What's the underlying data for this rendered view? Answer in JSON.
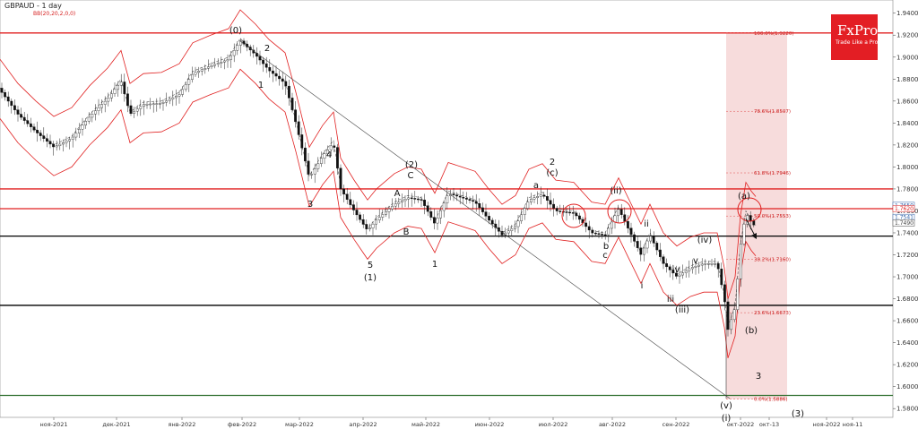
{
  "header": {
    "symbol_title": "GBPAUD - 1 day",
    "indicator_label": "BB(20,20,2,0,0)"
  },
  "logo": {
    "name": "FxPro",
    "tagline": "Trade Like a Pro",
    "color": "#e31e24"
  },
  "colors": {
    "bull": "#2e9e44",
    "bear": "#111111",
    "bollinger": "#e02020",
    "resistance": "#e02020",
    "support": "#000000",
    "low_line": "#2f6f2f",
    "fib_zone": "#f7dcdc",
    "accent_price": "#2d5fa8"
  },
  "chart_data": {
    "type": "candlestick",
    "title": "GBPAUD - 1 day",
    "y_axis": {
      "ylim": [
        1.572,
        1.952
      ],
      "ticks": [
        "1.9400",
        "1.9200",
        "1.9000",
        "1.8800",
        "1.8600",
        "1.8400",
        "1.8200",
        "1.8000",
        "1.7800",
        "1.7600",
        "1.7400",
        "1.7200",
        "1.7000",
        "1.6800",
        "1.6600",
        "1.6400",
        "1.6200",
        "1.6000",
        "1.5800"
      ]
    },
    "x_axis": {
      "ticks": [
        "ноя-2021",
        "дек-2021",
        "янв-2022",
        "фев-2022",
        "мар-2022",
        "апр-2022",
        "май-2022",
        "июн-2022",
        "июл-2022",
        "авг-2022",
        "сен-2022",
        "окт-2022",
        "окт-13",
        "ноя-2022",
        "ноя-11"
      ]
    },
    "current_price_labels": [
      "1.7650",
      "1.7620",
      "1.7541",
      "1.7490"
    ],
    "horizontal_levels": [
      {
        "value": 1.922,
        "color": "#e02020"
      },
      {
        "value": 1.78,
        "color": "#e02020"
      },
      {
        "value": 1.762,
        "color": "#e02020"
      },
      {
        "value": 1.737,
        "color": "#000000"
      },
      {
        "value": 1.674,
        "color": "#000000"
      },
      {
        "value": 1.592,
        "color": "#2f6f2f"
      }
    ],
    "fibonacci": [
      {
        "label": "100.0%(1.9220)",
        "value": 1.922
      },
      {
        "label": "78.6%(1.8507)",
        "value": 1.8507
      },
      {
        "label": "61.8%(1.7946)",
        "value": 1.7946
      },
      {
        "label": "50.0%(1.7553)",
        "value": 1.7553
      },
      {
        "label": "38.2%(1.7160)",
        "value": 1.716
      },
      {
        "label": "23.6%(1.6673)",
        "value": 1.6673
      },
      {
        "label": "0.0%(1.5886)",
        "value": 1.5886
      }
    ],
    "wave_labels": [
      "(0)",
      "2",
      "1",
      "4",
      "3",
      "(2)",
      "C",
      "A",
      "B",
      "5",
      "(1)",
      "1",
      "2",
      "(ii)",
      "(iv)",
      "(iii)",
      "(v)",
      "(i)",
      "(3)",
      "3",
      "(a)",
      "(b)",
      "(c)",
      "a",
      "b",
      "c",
      "i",
      "ii",
      "iii",
      "iv",
      "v"
    ],
    "series": []
  }
}
